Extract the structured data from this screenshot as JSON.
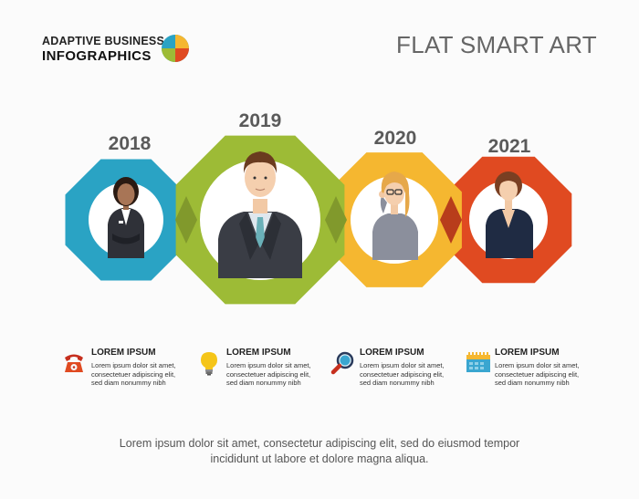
{
  "brand": {
    "line1": "ADAPTIVE BUSINESS",
    "line2": "INFOGRAPHICS"
  },
  "title": "FLAT SMART ART",
  "timeline": [
    {
      "year": "2018",
      "color": "#2aa3c4",
      "person": "woman-receptionist"
    },
    {
      "year": "2019",
      "color": "#9dbb36",
      "person": "businessman"
    },
    {
      "year": "2020",
      "color": "#f5b730",
      "person": "woman-glasses"
    },
    {
      "year": "2021",
      "color": "#e04a21",
      "person": "businesswoman"
    }
  ],
  "info": [
    {
      "icon": "telephone-icon",
      "heading": "LOREM IPSUM",
      "line1": "Lorem ipsum dolor sit amet,",
      "line2": "consectetuer adipiscing elit,",
      "line3": "sed diam nonummy nibh"
    },
    {
      "icon": "lightbulb-icon",
      "heading": "LOREM IPSUM",
      "line1": "Lorem ipsum dolor sit amet,",
      "line2": "consectetuer adipiscing elit,",
      "line3": "sed diam nonummy nibh"
    },
    {
      "icon": "magnifier-icon",
      "heading": "LOREM IPSUM",
      "line1": "Lorem ipsum dolor sit amet,",
      "line2": "consectetuer adipiscing elit,",
      "line3": "sed diam nonummy nibh"
    },
    {
      "icon": "calendar-icon",
      "heading": "LOREM IPSUM",
      "line1": "Lorem ipsum dolor sit amet,",
      "line2": "consectetuer adipiscing elit,",
      "line3": "sed diam nonummy nibh"
    }
  ],
  "footer": {
    "line1": "Lorem ipsum dolor sit amet, consectetur adipiscing elit, sed do eiusmod tempor",
    "line2": "incididunt ut labore et dolore magna aliqua."
  }
}
